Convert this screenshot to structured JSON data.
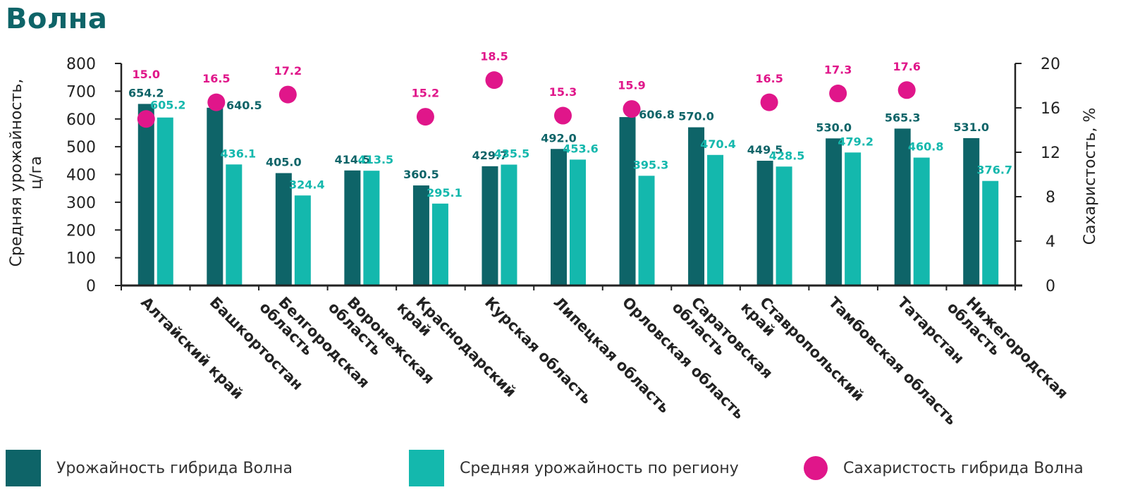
{
  "title": "Волна",
  "colors": {
    "series1": "#0e6468",
    "series2": "#14b8ad",
    "series3": "#e0168a",
    "title": "#0e6468"
  },
  "chart_data": {
    "type": "bar",
    "title": "Волна",
    "ylabel": "Средняя урожайность, ц/га",
    "y2label": "Сахаристость, %",
    "ylim": [
      0,
      800
    ],
    "y2lim": [
      0,
      20
    ],
    "yticks": [
      "0",
      "100",
      "200",
      "300",
      "400",
      "500",
      "600",
      "700",
      "800"
    ],
    "y2ticks": [
      "0",
      "4",
      "8",
      "12",
      "16",
      "20"
    ],
    "categories": [
      "Алтайский край",
      "Башкортостан",
      "Белгородская область",
      "Воронежская область",
      "Краснодарский край",
      "Курская область",
      "Липецкая область",
      "Орловская область",
      "Саратовская область",
      "Ставропольский край",
      "Тамбовская область",
      "Татарстан",
      "Нижегородская область"
    ],
    "series": [
      {
        "name": "Урожайность гибрида Волна",
        "type": "bar",
        "values": [
          654.2,
          640.5,
          405.0,
          414.5,
          360.5,
          429.7,
          492.0,
          606.8,
          570.0,
          449.5,
          530.0,
          565.3,
          531.0
        ],
        "labels": [
          "654.2",
          "640.5",
          "405.0",
          "414.5",
          "360.5",
          "429.7",
          "492.0",
          "606.8",
          "570.0",
          "449.5",
          "530.0",
          "565.3",
          "531.0"
        ]
      },
      {
        "name": "Средняя урожайность по региону",
        "type": "bar",
        "values": [
          605.2,
          436.1,
          324.4,
          413.5,
          295.1,
          435.5,
          453.6,
          395.3,
          470.4,
          428.5,
          479.2,
          460.8,
          376.7
        ],
        "labels": [
          "605.2",
          "436.1",
          "324.4",
          "413.5",
          "295.1",
          "435.5",
          "453.6",
          "395.3",
          "470.4",
          "428.5",
          "479.2",
          "460.8",
          "376.7"
        ]
      },
      {
        "name": "Сахаристость гибрида Волна",
        "type": "scatter",
        "axis": "right",
        "values": [
          15.0,
          16.5,
          17.2,
          null,
          15.2,
          18.5,
          15.3,
          15.9,
          null,
          16.5,
          17.3,
          17.6,
          null
        ],
        "labels": [
          "15.0",
          "16.5",
          "17.2",
          "",
          "15.2",
          "18.5",
          "15.3",
          "15.9",
          "",
          "16.5",
          "17.3",
          "17.6",
          ""
        ]
      }
    ],
    "legend_position": "bottom"
  },
  "legend": [
    {
      "label": "Урожайность гибрида Волна"
    },
    {
      "label": "Средняя урожайность по региону"
    },
    {
      "label": "Сахаристость гибрида Волна"
    }
  ]
}
